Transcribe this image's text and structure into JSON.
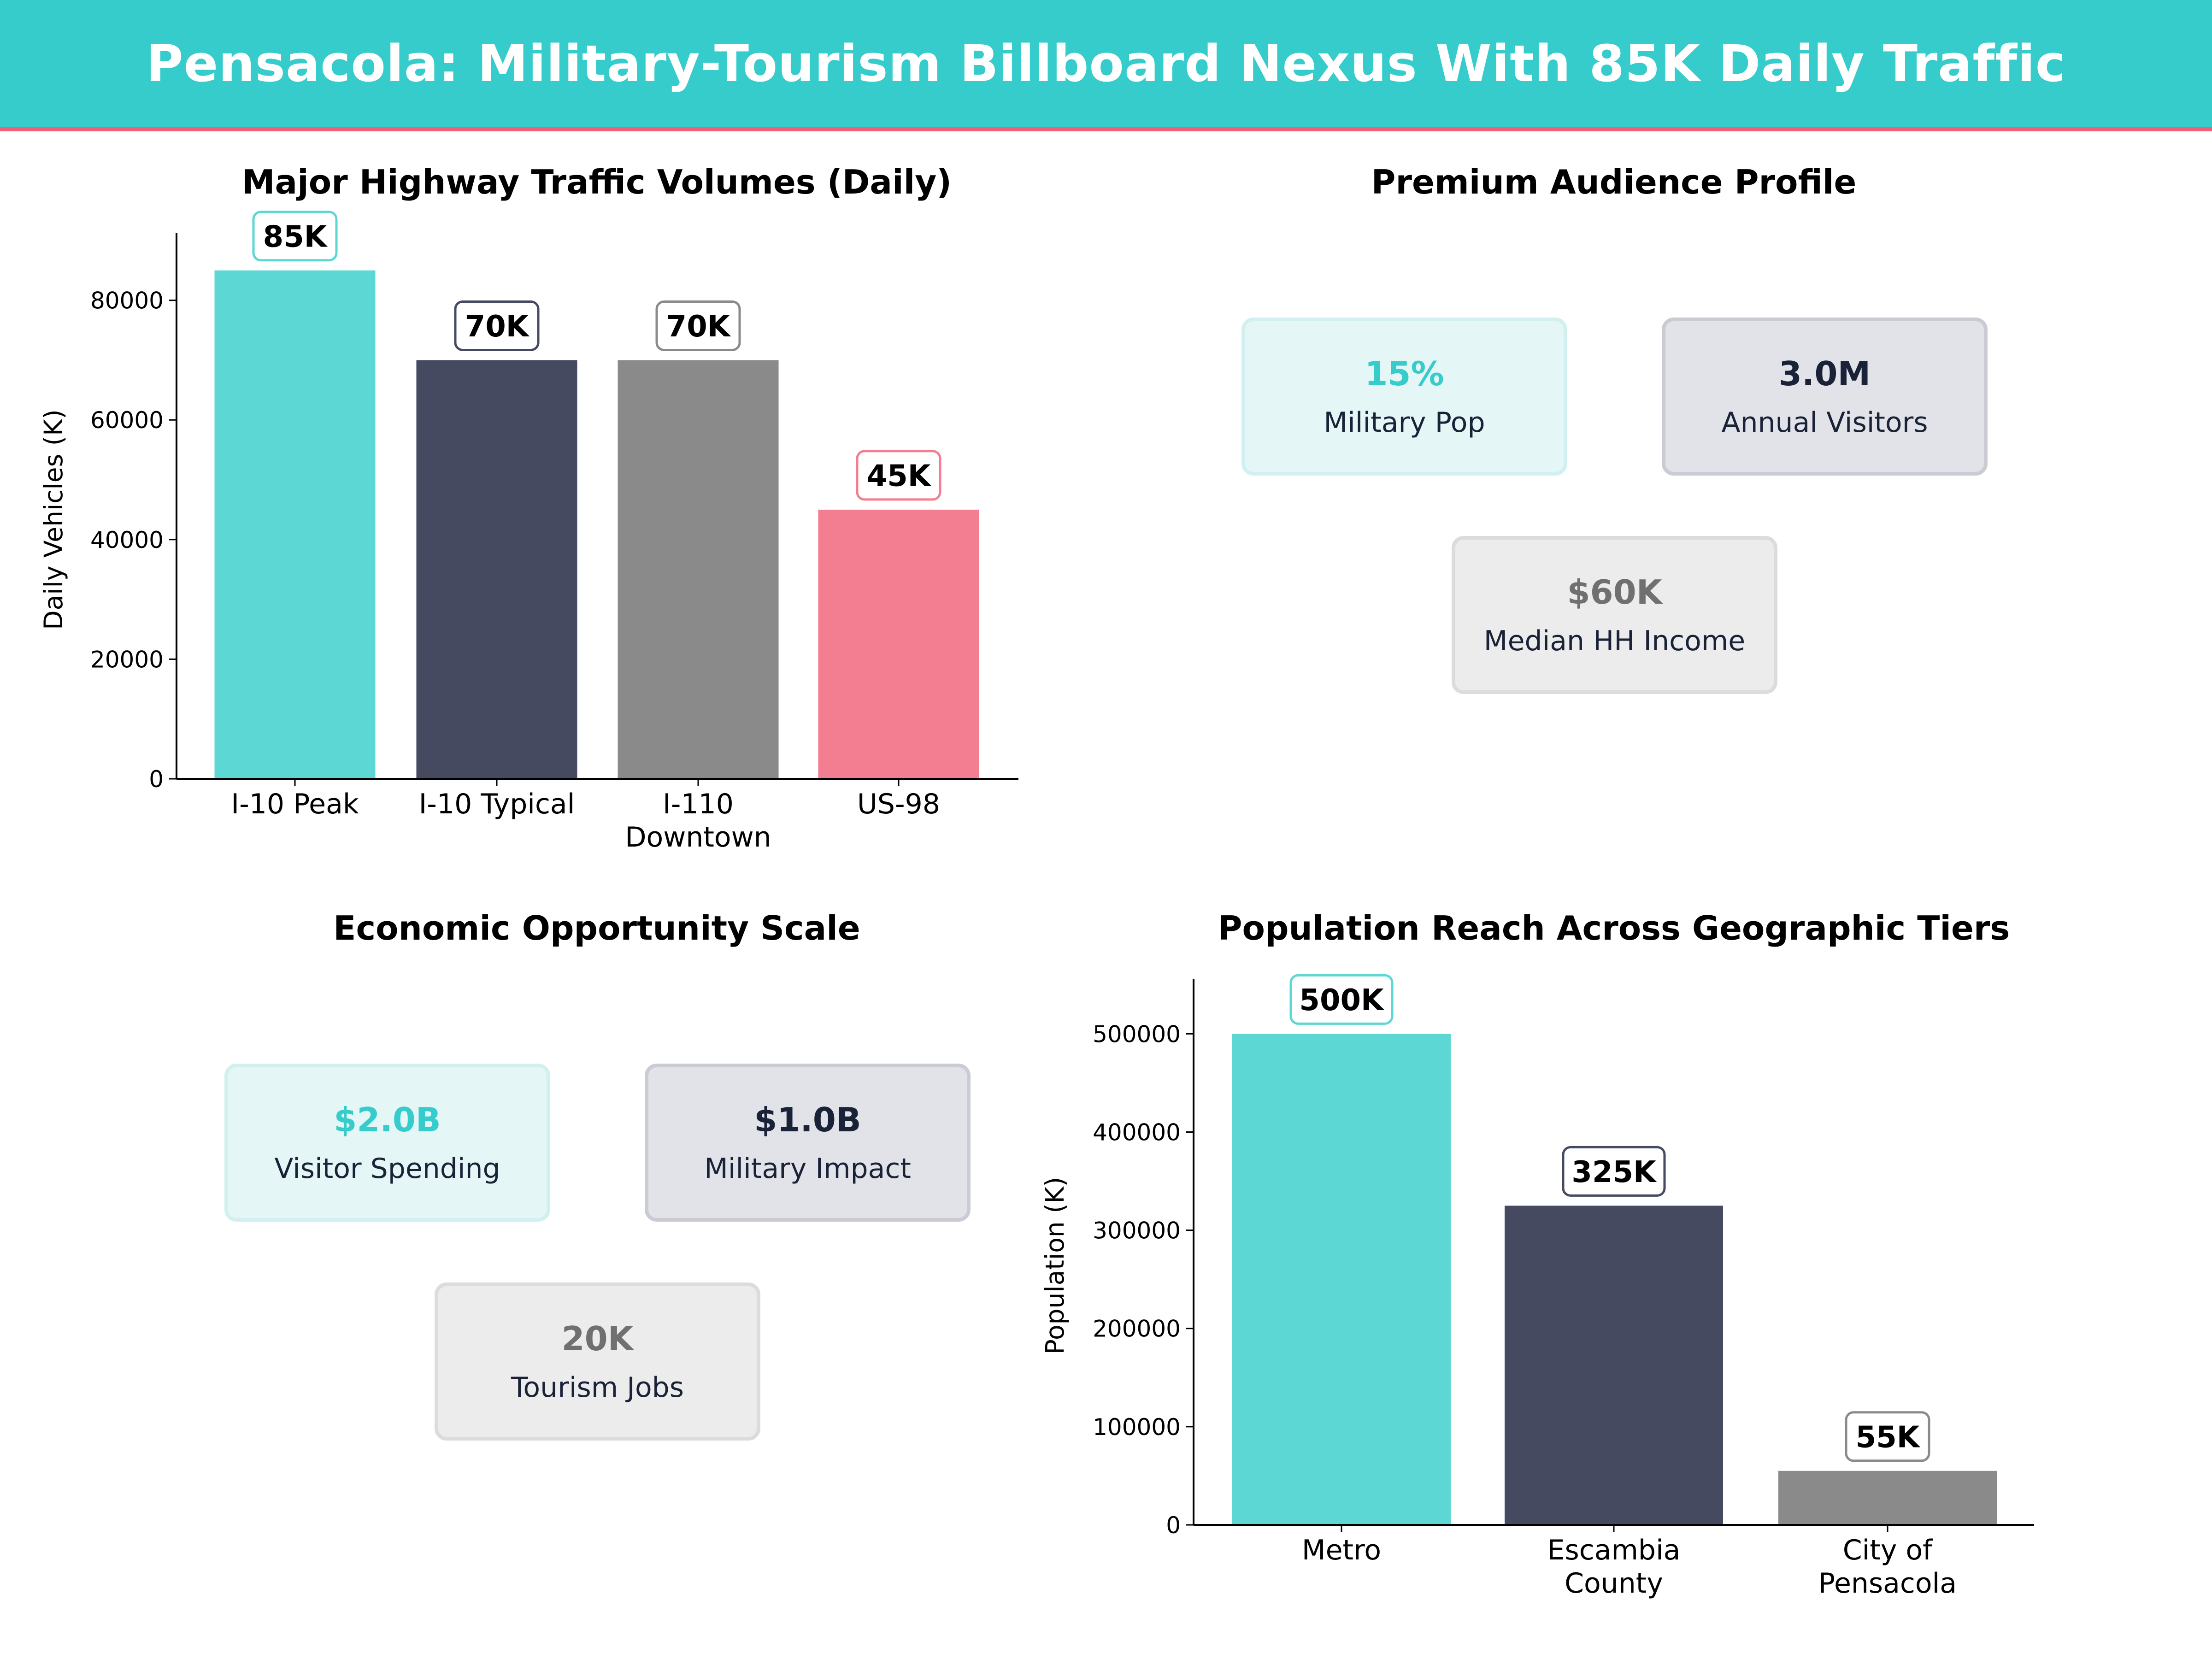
{
  "header": {
    "title": "Pensacola: Military-Tourism Billboard Nexus With 85K Daily Traffic",
    "bg_color": "#36CCCC",
    "accent_line_color": "#EE5F7A"
  },
  "panels": {
    "traffic": {
      "title": "Major Highway Traffic Volumes (Daily)",
      "ylabel": "Daily Vehicles (K)",
      "yticks": [
        "0",
        "20000",
        "40000",
        "60000",
        "80000"
      ],
      "categories": [
        {
          "line1": "I-10 Peak",
          "line2": ""
        },
        {
          "line1": "I-10 Typical",
          "line2": ""
        },
        {
          "line1": "I-110",
          "line2": "Downtown"
        },
        {
          "line1": "US-98",
          "line2": ""
        }
      ],
      "value_labels": [
        "85K",
        "70K",
        "70K",
        "45K"
      ]
    },
    "audience": {
      "title": "Premium Audience Profile",
      "cards": [
        {
          "value": "15%",
          "label": "Military Pop"
        },
        {
          "value": "3.0M",
          "label": "Annual Visitors"
        },
        {
          "value": "$60K",
          "label": "Median HH Income"
        }
      ]
    },
    "economic": {
      "title": "Economic Opportunity Scale",
      "cards": [
        {
          "value": "$2.0B",
          "label": "Visitor Spending"
        },
        {
          "value": "$1.0B",
          "label": "Military Impact"
        },
        {
          "value": "20K",
          "label": "Tourism Jobs"
        }
      ]
    },
    "population": {
      "title": "Population Reach Across Geographic Tiers",
      "ylabel": "Population (K)",
      "yticks": [
        "0",
        "100000",
        "200000",
        "300000",
        "400000",
        "500000"
      ],
      "categories": [
        {
          "line1": "Metro",
          "line2": ""
        },
        {
          "line1": "Escambia",
          "line2": "County"
        },
        {
          "line1": "City of",
          "line2": "Pensacola"
        }
      ],
      "value_labels": [
        "500K",
        "325K",
        "55K"
      ]
    }
  },
  "colors": {
    "teal": "#5DD7D4",
    "navy": "#454A60",
    "gray": "#8A8A8A",
    "pink": "#F47E91",
    "card_value_teal": "#36CCCC",
    "card_value_navy": "#1A2238",
    "card_value_gray": "#707070"
  },
  "chart_data": [
    {
      "type": "bar",
      "title": "Major Highway Traffic Volumes (Daily)",
      "xlabel": "",
      "ylabel": "Daily Vehicles (K)",
      "categories": [
        "I-10 Peak",
        "I-10 Typical",
        "I-110 Downtown",
        "US-98"
      ],
      "values": [
        85000,
        70000,
        70000,
        45000
      ],
      "value_labels": [
        "85K",
        "70K",
        "70K",
        "45K"
      ],
      "bar_colors": [
        "#5DD7D4",
        "#454A60",
        "#8A8A8A",
        "#F47E91"
      ],
      "yticks": [
        0,
        20000,
        40000,
        60000,
        80000
      ],
      "ylim": [
        0,
        91300
      ],
      "grid": false,
      "legend": null
    },
    {
      "type": "table",
      "title": "Premium Audience Profile",
      "rows": [
        {
          "metric": "Military Pop",
          "value": "15%"
        },
        {
          "metric": "Annual Visitors",
          "value": "3.0M"
        },
        {
          "metric": "Median HH Income",
          "value": "$60K"
        }
      ]
    },
    {
      "type": "table",
      "title": "Economic Opportunity Scale",
      "rows": [
        {
          "metric": "Visitor Spending",
          "value": "$2.0B"
        },
        {
          "metric": "Military Impact",
          "value": "$1.0B"
        },
        {
          "metric": "Tourism Jobs",
          "value": "20K"
        }
      ]
    },
    {
      "type": "bar",
      "title": "Population Reach Across Geographic Tiers",
      "xlabel": "",
      "ylabel": "Population (K)",
      "categories": [
        "Metro",
        "Escambia County",
        "City of Pensacola"
      ],
      "values": [
        500000,
        325000,
        55000
      ],
      "value_labels": [
        "500K",
        "325K",
        "55K"
      ],
      "bar_colors": [
        "#5DD7D4",
        "#454A60",
        "#8A8A8A"
      ],
      "yticks": [
        0,
        100000,
        200000,
        300000,
        400000,
        500000
      ],
      "ylim": [
        0,
        556000
      ],
      "grid": false,
      "legend": null
    }
  ]
}
